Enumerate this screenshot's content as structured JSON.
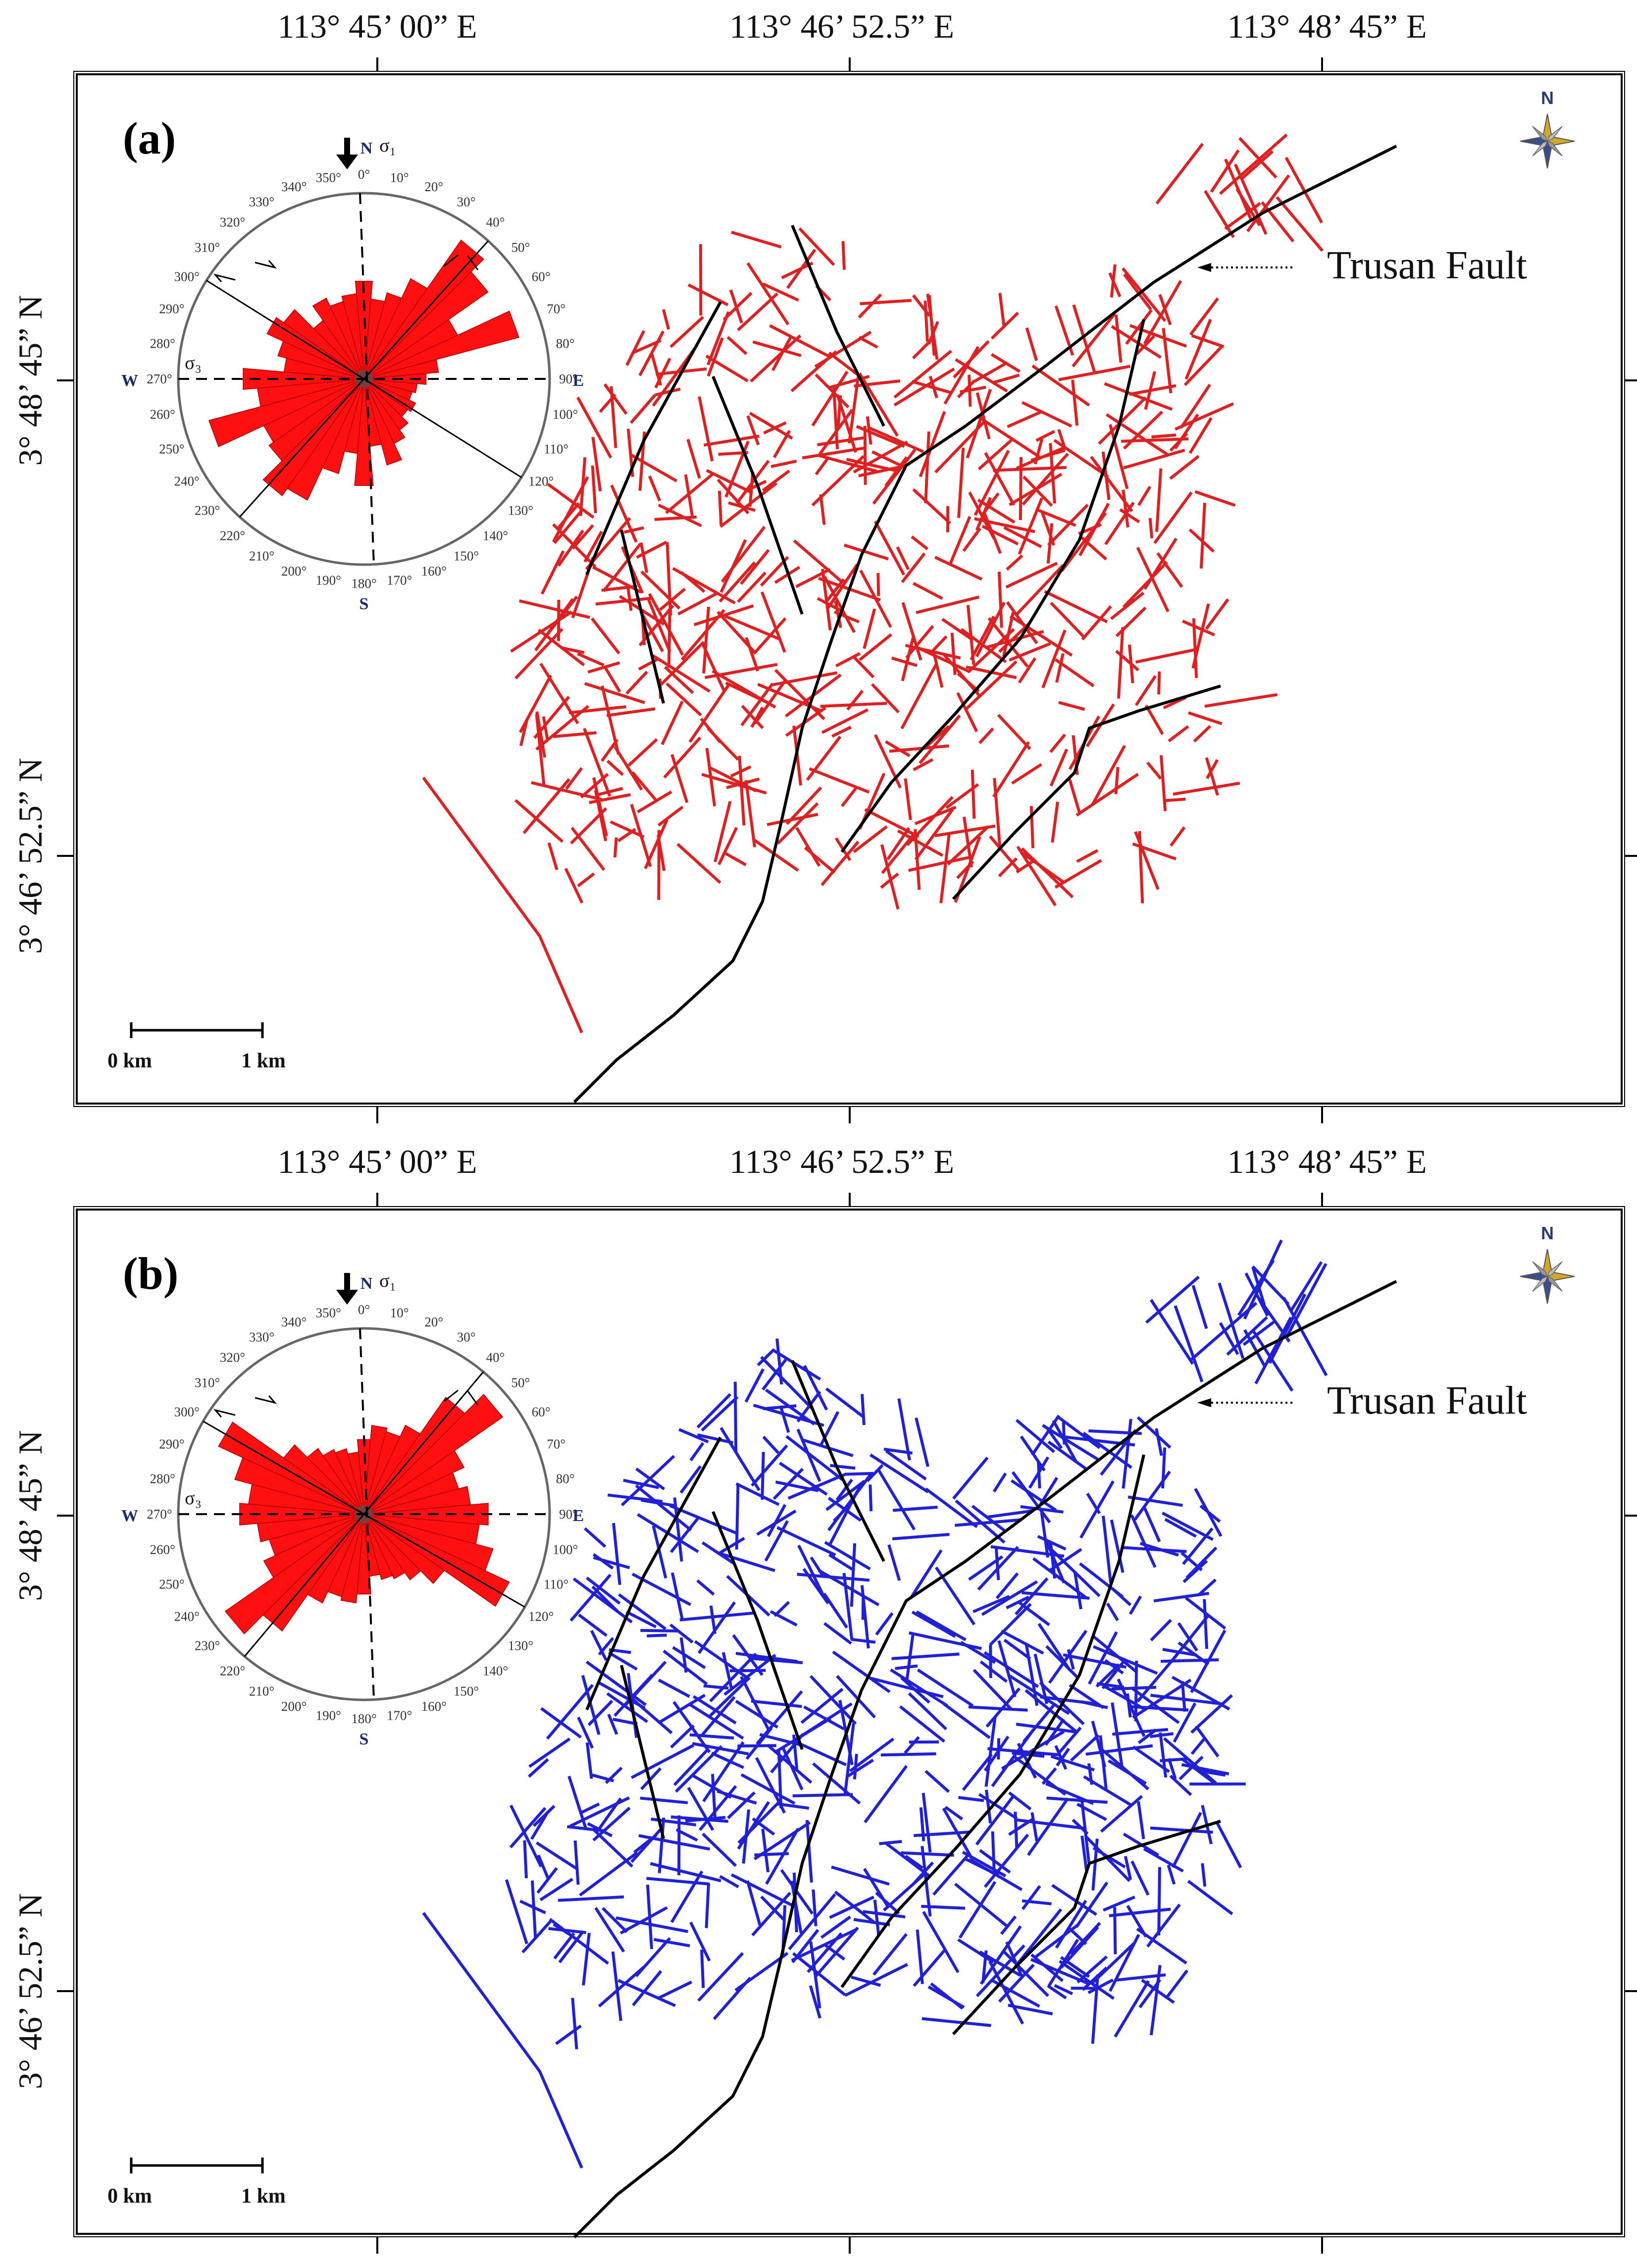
{
  "panels": [
    {
      "id": "a",
      "tag": "(a)",
      "lineament_color": "#e02020",
      "top_coords": [
        "113° 45’ 00” E",
        "113° 46’ 52.5” E",
        "113° 48’ 45” E"
      ],
      "side_coords": [
        "3° 48’ 45” N",
        "3° 46’ 52.5” N"
      ],
      "fault_label": "Trusan Fault",
      "scale": {
        "left": "0 km",
        "right": "1 km"
      },
      "north": "N",
      "rose": {
        "cardinals": {
          "n": "N",
          "e": "E",
          "s": "S",
          "w": "W"
        },
        "sigma1": "σ₁",
        "sigma3": "σ₃",
        "degrees": [
          "0°",
          "10°",
          "20°",
          "30°",
          "40°",
          "50°",
          "60°",
          "70°",
          "80°",
          "90°",
          "100°",
          "110°",
          "120°",
          "130°",
          "140°",
          "150°",
          "160°",
          "170°",
          "180°",
          "190°",
          "200°",
          "210°",
          "220°",
          "230°",
          "240°",
          "250°",
          "260°",
          "270°",
          "280°",
          "290°",
          "300°",
          "310°",
          "320°",
          "330°",
          "340°",
          "350°"
        ],
        "petal_color": "#ff1010",
        "petals": [
          0.55,
          0.45,
          0.5,
          0.62,
          0.95,
          0.85,
          0.58,
          0.9,
          0.42,
          0.35,
          0.3,
          0.28,
          0.32,
          0.3,
          0.35,
          0.4,
          0.5,
          0.38,
          0.6,
          0.42,
          0.55,
          0.75,
          0.8,
          0.65,
          0.62,
          0.9,
          0.6,
          0.68,
          0.45,
          0.5,
          0.6,
          0.55,
          0.4,
          0.5,
          0.45,
          0.48
        ]
      }
    },
    {
      "id": "b",
      "tag": "(b)",
      "lineament_color": "#2020d8",
      "top_coords": [
        "113° 45’ 00” E",
        "113° 46’ 52.5” E",
        "113° 48’ 45” E"
      ],
      "side_coords": [
        "3° 48’ 45” N",
        "3° 46’ 52.5” N"
      ],
      "fault_label": "Trusan Fault",
      "scale": {
        "left": "0 km",
        "right": "1 km"
      },
      "north": "N",
      "rose": {
        "cardinals": {
          "n": "N",
          "e": "E",
          "s": "S",
          "w": "W"
        },
        "sigma1": "σ₁",
        "sigma3": "σ₃",
        "degrees": [
          "0°",
          "10°",
          "20°",
          "30°",
          "40°",
          "50°",
          "60°",
          "70°",
          "80°",
          "90°",
          "100°",
          "110°",
          "120°",
          "130°",
          "140°",
          "150°",
          "160°",
          "170°",
          "180°",
          "190°",
          "200°",
          "210°",
          "220°",
          "230°",
          "240°",
          "250°",
          "260°",
          "270°",
          "280°",
          "290°",
          "300°",
          "310°",
          "320°",
          "330°",
          "340°",
          "350°"
        ],
        "petal_color": "#ff1010",
        "petals": [
          0.42,
          0.5,
          0.48,
          0.55,
          0.8,
          0.95,
          0.62,
          0.55,
          0.6,
          0.7,
          0.65,
          0.75,
          0.9,
          0.55,
          0.45,
          0.4,
          0.38,
          0.35,
          0.45,
          0.5,
          0.48,
          0.55,
          0.8,
          0.95,
          0.62,
          0.55,
          0.6,
          0.7,
          0.65,
          0.75,
          0.9,
          0.55,
          0.45,
          0.4,
          0.38,
          0.35
        ]
      }
    }
  ]
}
